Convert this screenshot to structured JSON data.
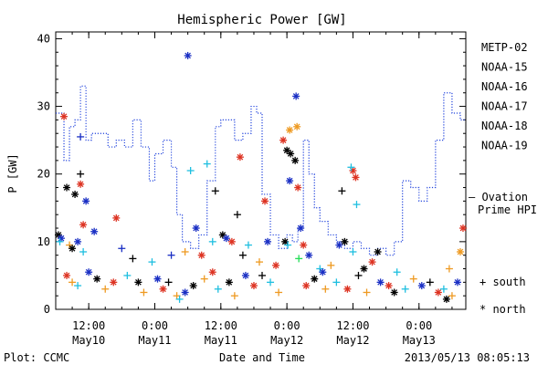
{
  "chart_data": {
    "type": "scatter",
    "title": "Hemispheric Power [GW]",
    "xlabel": "Date and Time",
    "ylabel": "P [GW]",
    "ylim": [
      0,
      41
    ],
    "yticks": [
      0,
      10,
      20,
      30,
      40
    ],
    "xlim": [
      "2013-05-10 06:00",
      "2013-05-13 08:30"
    ],
    "xticks": [
      {
        "time": "2013-05-10 12:00",
        "line1": "12:00",
        "line2": "May10"
      },
      {
        "time": "2013-05-11 00:00",
        "line1": "0:00",
        "line2": "May11"
      },
      {
        "time": "2013-05-11 12:00",
        "line1": "12:00",
        "line2": "May11"
      },
      {
        "time": "2013-05-12 00:00",
        "line1": "0:00",
        "line2": "May12"
      },
      {
        "time": "2013-05-12 12:00",
        "line1": "12:00",
        "line2": "May12"
      },
      {
        "time": "2013-05-13 00:00",
        "line1": "0:00",
        "line2": "May13"
      }
    ],
    "legend_placement": "right",
    "series": [
      {
        "name": "METP-02",
        "color": "#000000"
      },
      {
        "name": "NOAA-15",
        "color": "#1a2fc4"
      },
      {
        "name": "NOAA-16",
        "color": "#1fbfe0"
      },
      {
        "name": "NOAA-17",
        "color": "#22dd55"
      },
      {
        "name": "NOAA-18",
        "color": "#ee9a22"
      },
      {
        "name": "NOAA-19",
        "color": "#dd3322"
      }
    ],
    "ovation": {
      "name": "— Ovation Prime HPI",
      "color": "#2244dd",
      "points": [
        [
          "2013-05-10 06:00",
          29
        ],
        [
          "2013-05-10 07:00",
          29
        ],
        [
          "2013-05-10 07:30",
          22
        ],
        [
          "2013-05-10 08:30",
          27
        ],
        [
          "2013-05-10 09:30",
          28
        ],
        [
          "2013-05-10 10:30",
          33
        ],
        [
          "2013-05-10 11:30",
          25
        ],
        [
          "2013-05-10 12:30",
          26
        ],
        [
          "2013-05-10 14:00",
          26
        ],
        [
          "2013-05-10 15:30",
          24
        ],
        [
          "2013-05-10 17:00",
          25
        ],
        [
          "2013-05-10 18:30",
          24
        ],
        [
          "2013-05-10 20:00",
          28
        ],
        [
          "2013-05-10 21:30",
          24
        ],
        [
          "2013-05-10 23:00",
          19
        ],
        [
          "2013-05-11 00:00",
          23
        ],
        [
          "2013-05-11 01:30",
          25
        ],
        [
          "2013-05-11 03:00",
          21
        ],
        [
          "2013-05-11 04:00",
          14
        ],
        [
          "2013-05-11 05:00",
          10
        ],
        [
          "2013-05-11 06:30",
          9
        ],
        [
          "2013-05-11 08:00",
          11
        ],
        [
          "2013-05-11 09:30",
          19
        ],
        [
          "2013-05-11 11:00",
          27
        ],
        [
          "2013-05-11 12:00",
          28
        ],
        [
          "2013-05-11 13:30",
          28
        ],
        [
          "2013-05-11 14:30",
          25
        ],
        [
          "2013-05-11 16:00",
          26
        ],
        [
          "2013-05-11 17:30",
          30
        ],
        [
          "2013-05-11 18:30",
          29
        ],
        [
          "2013-05-11 19:30",
          17
        ],
        [
          "2013-05-11 21:00",
          11
        ],
        [
          "2013-05-11 22:30",
          9
        ],
        [
          "2013-05-12 00:00",
          11
        ],
        [
          "2013-05-12 01:00",
          10
        ],
        [
          "2013-05-12 02:00",
          12
        ],
        [
          "2013-05-12 03:00",
          25
        ],
        [
          "2013-05-12 04:00",
          20
        ],
        [
          "2013-05-12 05:00",
          15
        ],
        [
          "2013-05-12 06:00",
          13
        ],
        [
          "2013-05-12 07:30",
          11
        ],
        [
          "2013-05-12 09:00",
          10
        ],
        [
          "2013-05-12 10:30",
          9
        ],
        [
          "2013-05-12 12:00",
          10
        ],
        [
          "2013-05-12 13:30",
          9
        ],
        [
          "2013-05-12 15:00",
          8
        ],
        [
          "2013-05-12 16:30",
          9
        ],
        [
          "2013-05-12 18:00",
          8
        ],
        [
          "2013-05-12 19:30",
          10
        ],
        [
          "2013-05-12 21:00",
          19
        ],
        [
          "2013-05-12 22:30",
          18
        ],
        [
          "2013-05-13 00:00",
          16
        ],
        [
          "2013-05-13 01:30",
          18
        ],
        [
          "2013-05-13 03:00",
          25
        ],
        [
          "2013-05-13 04:30",
          32
        ],
        [
          "2013-05-13 06:00",
          29
        ],
        [
          "2013-05-13 07:30",
          28
        ],
        [
          "2013-05-13 08:30",
          28
        ]
      ]
    },
    "markers": [
      {
        "name": "south",
        "symbol": "+"
      },
      {
        "name": "north",
        "symbol": "*"
      }
    ],
    "points": [
      {
        "s": 1,
        "m": "*",
        "t": "2013-05-11 06:00",
        "v": 37.5
      },
      {
        "s": 1,
        "m": "*",
        "t": "2013-05-12 01:40",
        "v": 31.5
      },
      {
        "s": 5,
        "m": "*",
        "t": "2013-05-10 07:30",
        "v": 28.5
      },
      {
        "s": 1,
        "m": "+",
        "t": "2013-05-10 10:30",
        "v": 25.5
      },
      {
        "s": 4,
        "m": "*",
        "t": "2013-05-12 01:50",
        "v": 27
      },
      {
        "s": 4,
        "m": "*",
        "t": "2013-05-12 00:30",
        "v": 26.5
      },
      {
        "s": 5,
        "m": "*",
        "t": "2013-05-11 23:20",
        "v": 25
      },
      {
        "s": 0,
        "m": "*",
        "t": "2013-05-12 00:00",
        "v": 23.5
      },
      {
        "s": 0,
        "m": "*",
        "t": "2013-05-12 00:40",
        "v": 23
      },
      {
        "s": 0,
        "m": "*",
        "t": "2013-05-12 01:30",
        "v": 22
      },
      {
        "s": 5,
        "m": "*",
        "t": "2013-05-11 15:30",
        "v": 22.5
      },
      {
        "s": 2,
        "m": "+",
        "t": "2013-05-11 09:30",
        "v": 21.5
      },
      {
        "s": 2,
        "m": "+",
        "t": "2013-05-11 06:30",
        "v": 20.5
      },
      {
        "s": 5,
        "m": "*",
        "t": "2013-05-12 12:00",
        "v": 20.5
      },
      {
        "s": 2,
        "m": "+",
        "t": "2013-05-12 11:40",
        "v": 21
      },
      {
        "s": 0,
        "m": "+",
        "t": "2013-05-10 10:30",
        "v": 20
      },
      {
        "s": 5,
        "m": "*",
        "t": "2013-05-12 12:30",
        "v": 19.5
      },
      {
        "s": 1,
        "m": "*",
        "t": "2013-05-12 00:30",
        "v": 19
      },
      {
        "s": 0,
        "m": "*",
        "t": "2013-05-10 08:00",
        "v": 18
      },
      {
        "s": 5,
        "m": "*",
        "t": "2013-05-10 10:30",
        "v": 18.5
      },
      {
        "s": 0,
        "m": "+",
        "t": "2013-05-11 11:00",
        "v": 17.5
      },
      {
        "s": 0,
        "m": "+",
        "t": "2013-05-12 10:00",
        "v": 17.5
      },
      {
        "s": 0,
        "m": "*",
        "t": "2013-05-10 09:30",
        "v": 17
      },
      {
        "s": 1,
        "m": "*",
        "t": "2013-05-10 11:30",
        "v": 16
      },
      {
        "s": 5,
        "m": "*",
        "t": "2013-05-11 20:00",
        "v": 16
      },
      {
        "s": 2,
        "m": "+",
        "t": "2013-05-12 12:40",
        "v": 15.5
      },
      {
        "s": 5,
        "m": "*",
        "t": "2013-05-12 02:00",
        "v": 18
      },
      {
        "s": 0,
        "m": "+",
        "t": "2013-05-11 15:00",
        "v": 14
      },
      {
        "s": 1,
        "m": "*",
        "t": "2013-05-12 02:30",
        "v": 12
      },
      {
        "s": 5,
        "m": "*",
        "t": "2013-05-10 17:00",
        "v": 13.5
      },
      {
        "s": 5,
        "m": "*",
        "t": "2013-05-10 11:00",
        "v": 12.5
      },
      {
        "s": 1,
        "m": "*",
        "t": "2013-05-10 13:00",
        "v": 11.5
      },
      {
        "s": 0,
        "m": "*",
        "t": "2013-05-10 06:30",
        "v": 11
      },
      {
        "s": 1,
        "m": "*",
        "t": "2013-05-10 07:00",
        "v": 10.5
      },
      {
        "s": 2,
        "m": "+",
        "t": "2013-05-10 06:45",
        "v": 10
      },
      {
        "s": 1,
        "m": "*",
        "t": "2013-05-11 07:30",
        "v": 12
      },
      {
        "s": 4,
        "m": "+",
        "t": "2013-05-10 08:30",
        "v": 9.5
      },
      {
        "s": 0,
        "m": "*",
        "t": "2013-05-10 09:00",
        "v": 9
      },
      {
        "s": 1,
        "m": "*",
        "t": "2013-05-10 10:00",
        "v": 10
      },
      {
        "s": 2,
        "m": "+",
        "t": "2013-05-10 11:00",
        "v": 8.5
      },
      {
        "s": 0,
        "m": "*",
        "t": "2013-05-11 12:20",
        "v": 11
      },
      {
        "s": 2,
        "m": "+",
        "t": "2013-05-11 10:30",
        "v": 10
      },
      {
        "s": 1,
        "m": "*",
        "t": "2013-05-11 13:00",
        "v": 10.5
      },
      {
        "s": 5,
        "m": "*",
        "t": "2013-05-11 14:00",
        "v": 10
      },
      {
        "s": 2,
        "m": "+",
        "t": "2013-05-11 17:00",
        "v": 9.5
      },
      {
        "s": 0,
        "m": "*",
        "t": "2013-05-11 23:40",
        "v": 10
      },
      {
        "s": 1,
        "m": "*",
        "t": "2013-05-11 20:30",
        "v": 10
      },
      {
        "s": 2,
        "m": "+",
        "t": "2013-05-12 00:10",
        "v": 9.5
      },
      {
        "s": 5,
        "m": "*",
        "t": "2013-05-12 03:00",
        "v": 9.5
      },
      {
        "s": 1,
        "m": "*",
        "t": "2013-05-12 09:30",
        "v": 9.5
      },
      {
        "s": 0,
        "m": "*",
        "t": "2013-05-12 10:30",
        "v": 10
      },
      {
        "s": 2,
        "m": "+",
        "t": "2013-05-12 12:00",
        "v": 8.5
      },
      {
        "s": 0,
        "m": "*",
        "t": "2013-05-12 16:30",
        "v": 8.5
      },
      {
        "s": 4,
        "m": "*",
        "t": "2013-05-13 07:30",
        "v": 8.5
      },
      {
        "s": 5,
        "m": "*",
        "t": "2013-05-13 08:00",
        "v": 12
      },
      {
        "s": 1,
        "m": "+",
        "t": "2013-05-10 18:00",
        "v": 9
      },
      {
        "s": 0,
        "m": "+",
        "t": "2013-05-10 20:00",
        "v": 7.5
      },
      {
        "s": 2,
        "m": "+",
        "t": "2013-05-10 23:30",
        "v": 7
      },
      {
        "s": 1,
        "m": "+",
        "t": "2013-05-11 03:00",
        "v": 8
      },
      {
        "s": 4,
        "m": "+",
        "t": "2013-05-11 05:30",
        "v": 8.5
      },
      {
        "s": 5,
        "m": "*",
        "t": "2013-05-11 08:30",
        "v": 8
      },
      {
        "s": 0,
        "m": "+",
        "t": "2013-05-11 16:00",
        "v": 8
      },
      {
        "s": 4,
        "m": "+",
        "t": "2013-05-11 19:00",
        "v": 7
      },
      {
        "s": 5,
        "m": "*",
        "t": "2013-05-11 22:00",
        "v": 6.5
      },
      {
        "s": 1,
        "m": "*",
        "t": "2013-05-12 04:00",
        "v": 8
      },
      {
        "s": 2,
        "m": "+",
        "t": "2013-05-12 06:00",
        "v": 6
      },
      {
        "s": 4,
        "m": "+",
        "t": "2013-05-12 08:00",
        "v": 6.5
      },
      {
        "s": 0,
        "m": "*",
        "t": "2013-05-12 14:00",
        "v": 6
      },
      {
        "s": 5,
        "m": "*",
        "t": "2013-05-12 15:30",
        "v": 7
      },
      {
        "s": 2,
        "m": "+",
        "t": "2013-05-12 20:00",
        "v": 5.5
      },
      {
        "s": 4,
        "m": "+",
        "t": "2013-05-13 05:30",
        "v": 6
      },
      {
        "s": 5,
        "m": "*",
        "t": "2013-05-10 08:00",
        "v": 5
      },
      {
        "s": 4,
        "m": "+",
        "t": "2013-05-10 09:00",
        "v": 4
      },
      {
        "s": 2,
        "m": "+",
        "t": "2013-05-10 10:00",
        "v": 3.5
      },
      {
        "s": 1,
        "m": "*",
        "t": "2013-05-10 12:00",
        "v": 5.5
      },
      {
        "s": 0,
        "m": "*",
        "t": "2013-05-10 13:30",
        "v": 4.5
      },
      {
        "s": 4,
        "m": "+",
        "t": "2013-05-10 15:00",
        "v": 3
      },
      {
        "s": 5,
        "m": "*",
        "t": "2013-05-10 16:30",
        "v": 4
      },
      {
        "s": 2,
        "m": "+",
        "t": "2013-05-10 19:00",
        "v": 5
      },
      {
        "s": 0,
        "m": "*",
        "t": "2013-05-10 21:00",
        "v": 4
      },
      {
        "s": 4,
        "m": "+",
        "t": "2013-05-10 22:00",
        "v": 2.5
      },
      {
        "s": 1,
        "m": "*",
        "t": "2013-05-11 00:30",
        "v": 4.5
      },
      {
        "s": 5,
        "m": "*",
        "t": "2013-05-11 01:30",
        "v": 3
      },
      {
        "s": 0,
        "m": "+",
        "t": "2013-05-11 02:30",
        "v": 4
      },
      {
        "s": 4,
        "m": "+",
        "t": "2013-05-11 04:00",
        "v": 2
      },
      {
        "s": 2,
        "m": "+",
        "t": "2013-05-11 04:30",
        "v": 1.5
      },
      {
        "s": 1,
        "m": "*",
        "t": "2013-05-11 05:30",
        "v": 2.5
      },
      {
        "s": 0,
        "m": "*",
        "t": "2013-05-11 07:00",
        "v": 3.5
      },
      {
        "s": 4,
        "m": "+",
        "t": "2013-05-11 09:00",
        "v": 4.5
      },
      {
        "s": 5,
        "m": "*",
        "t": "2013-05-11 10:30",
        "v": 5.5
      },
      {
        "s": 2,
        "m": "+",
        "t": "2013-05-11 11:30",
        "v": 3
      },
      {
        "s": 0,
        "m": "*",
        "t": "2013-05-11 13:30",
        "v": 4
      },
      {
        "s": 4,
        "m": "+",
        "t": "2013-05-11 14:30",
        "v": 2
      },
      {
        "s": 1,
        "m": "*",
        "t": "2013-05-11 16:30",
        "v": 5
      },
      {
        "s": 5,
        "m": "*",
        "t": "2013-05-11 18:00",
        "v": 3.5
      },
      {
        "s": 0,
        "m": "+",
        "t": "2013-05-11 19:30",
        "v": 5
      },
      {
        "s": 2,
        "m": "+",
        "t": "2013-05-11 21:00",
        "v": 4
      },
      {
        "s": 4,
        "m": "+",
        "t": "2013-05-11 22:30",
        "v": 2.5
      },
      {
        "s": 5,
        "m": "*",
        "t": "2013-05-12 03:30",
        "v": 3.5
      },
      {
        "s": 0,
        "m": "*",
        "t": "2013-05-12 05:00",
        "v": 4.5
      },
      {
        "s": 1,
        "m": "*",
        "t": "2013-05-12 06:30",
        "v": 5.5
      },
      {
        "s": 4,
        "m": "+",
        "t": "2013-05-12 07:00",
        "v": 3
      },
      {
        "s": 2,
        "m": "+",
        "t": "2013-05-12 09:00",
        "v": 4
      },
      {
        "s": 5,
        "m": "*",
        "t": "2013-05-12 11:00",
        "v": 3
      },
      {
        "s": 0,
        "m": "+",
        "t": "2013-05-12 13:00",
        "v": 5
      },
      {
        "s": 4,
        "m": "+",
        "t": "2013-05-12 14:30",
        "v": 2.5
      },
      {
        "s": 1,
        "m": "*",
        "t": "2013-05-12 17:00",
        "v": 4
      },
      {
        "s": 5,
        "m": "*",
        "t": "2013-05-12 18:30",
        "v": 3.5
      },
      {
        "s": 0,
        "m": "*",
        "t": "2013-05-12 19:30",
        "v": 2.5
      },
      {
        "s": 2,
        "m": "+",
        "t": "2013-05-12 21:30",
        "v": 3
      },
      {
        "s": 4,
        "m": "+",
        "t": "2013-05-12 23:00",
        "v": 4.5
      },
      {
        "s": 1,
        "m": "*",
        "t": "2013-05-13 00:30",
        "v": 3.5
      },
      {
        "s": 0,
        "m": "+",
        "t": "2013-05-13 02:00",
        "v": 4
      },
      {
        "s": 5,
        "m": "*",
        "t": "2013-05-13 03:30",
        "v": 2.5
      },
      {
        "s": 2,
        "m": "+",
        "t": "2013-05-13 04:30",
        "v": 3
      },
      {
        "s": 0,
        "m": "*",
        "t": "2013-05-13 05:00",
        "v": 1.5
      },
      {
        "s": 4,
        "m": "+",
        "t": "2013-05-13 06:00",
        "v": 2
      },
      {
        "s": 1,
        "m": "*",
        "t": "2013-05-13 07:00",
        "v": 4
      },
      {
        "s": 3,
        "m": "+",
        "t": "2013-05-12 02:10",
        "v": 7.5
      }
    ]
  },
  "footer": {
    "left": "Plot: CCMC",
    "right": "2013/05/13 08:05:13"
  }
}
